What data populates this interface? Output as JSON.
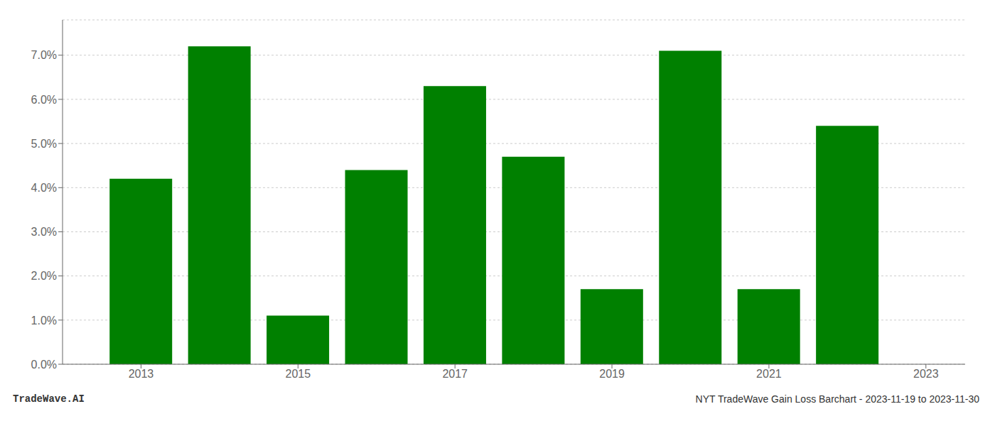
{
  "chart_data": {
    "type": "bar",
    "x": [
      2013,
      2014,
      2015,
      2016,
      2017,
      2018,
      2019,
      2020,
      2021,
      2022
    ],
    "values": [
      0.042,
      0.072,
      0.011,
      0.044,
      0.063,
      0.047,
      0.017,
      0.071,
      0.017,
      0.054
    ],
    "color": "#008000",
    "xlim": [
      2012.0,
      2023.5
    ],
    "xticks": [
      2013,
      2015,
      2017,
      2019,
      2021,
      2023
    ],
    "ylim": [
      0,
      0.078
    ],
    "yticks": [
      {
        "value": 0.0,
        "label": "0.0%"
      },
      {
        "value": 0.01,
        "label": "1.0%"
      },
      {
        "value": 0.02,
        "label": "2.0%"
      },
      {
        "value": 0.03,
        "label": "3.0%"
      },
      {
        "value": 0.04,
        "label": "4.0%"
      },
      {
        "value": 0.05,
        "label": "5.0%"
      },
      {
        "value": 0.06,
        "label": "6.0%"
      },
      {
        "value": 0.07,
        "label": "7.0%"
      }
    ],
    "grid": true,
    "annotations": [
      "TradeWave.AI",
      "NYT TradeWave Gain Loss Barchart - 2023-11-19 to 2023-11-30"
    ]
  }
}
